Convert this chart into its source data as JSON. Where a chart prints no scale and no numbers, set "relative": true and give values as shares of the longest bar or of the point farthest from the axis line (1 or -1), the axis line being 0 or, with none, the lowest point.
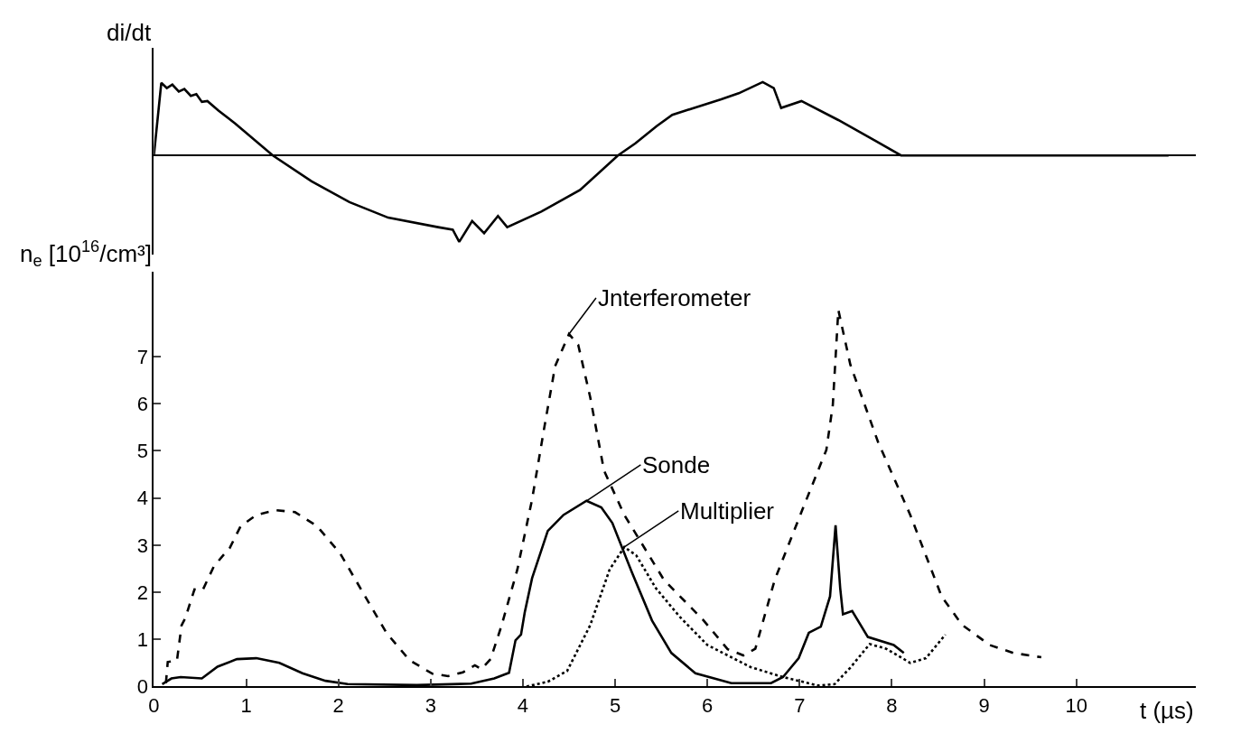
{
  "chart_data": [
    {
      "type": "line",
      "relative": true,
      "ylabel": "di/dt",
      "xlim": [
        0,
        11.3
      ],
      "tick_labels": false,
      "legend": false,
      "marker": "none",
      "series": [
        {
          "color": "#000000",
          "line_style": "solid",
          "x": [
            0,
            0.08,
            0.14,
            0.2,
            0.27,
            0.33,
            0.4,
            0.46,
            0.52,
            0.58,
            0.7,
            0.88,
            1.29,
            1.71,
            2.12,
            2.54,
            3.08,
            3.24,
            3.31,
            3.45,
            3.58,
            3.73,
            3.83,
            4.2,
            4.62,
            5.03,
            5.22,
            5.45,
            5.62,
            6.15,
            6.34,
            6.6,
            6.72,
            6.8,
            7.02,
            7.42,
            7.82,
            8.1,
            11.0
          ],
          "values": [
            0,
            0.84,
            0.78,
            0.82,
            0.74,
            0.77,
            0.69,
            0.71,
            0.62,
            0.63,
            0.52,
            0.37,
            0,
            -0.3,
            -0.54,
            -0.72,
            -0.83,
            -0.86,
            -1,
            -0.76,
            -0.9,
            -0.7,
            -0.83,
            -0.65,
            -0.4,
            0,
            0.14,
            0.34,
            0.47,
            0.65,
            0.72,
            0.85,
            0.78,
            0.55,
            0.63,
            0.41,
            0.17,
            0,
            0
          ]
        }
      ]
    },
    {
      "type": "line",
      "ylabel": "n$_{e}$ [10$^{16}$/cm³]",
      "xlabel": "t (µs)",
      "xlim": [
        0,
        11.3
      ],
      "ylim": [
        0,
        8.8
      ],
      "xticks": [
        0,
        1,
        2,
        3,
        4,
        5,
        6,
        7,
        8,
        9,
        10
      ],
      "yticks": [
        0,
        1,
        2,
        3,
        4,
        5,
        6,
        7
      ],
      "legend": false,
      "marker": "none",
      "series": [
        {
          "name": "Jnterferometer",
          "color": "#000000",
          "line_style": "dashed",
          "x": [
            0.13,
            0.15,
            0.25,
            0.3,
            0.34,
            0.44,
            0.53,
            0.65,
            0.78,
            0.82,
            0.94,
            1.11,
            1.32,
            1.53,
            1.77,
            2.02,
            2.27,
            2.52,
            2.77,
            3.02,
            3.19,
            3.35,
            3.48,
            3.55,
            3.65,
            3.77,
            3.94,
            4.1,
            4.23,
            4.35,
            4.5,
            4.6,
            4.73,
            4.88,
            5.1,
            5.53,
            5.96,
            6.22,
            6.39,
            6.52,
            6.73,
            7.04,
            7.29,
            7.36,
            7.42,
            7.55,
            7.85,
            8.2,
            8.54,
            8.76,
            9.06,
            9.32,
            9.62
          ],
          "values": [
            0.07,
            0.52,
            0.55,
            1.3,
            1.45,
            2.06,
            2.05,
            2.55,
            2.85,
            2.93,
            3.4,
            3.64,
            3.74,
            3.7,
            3.4,
            2.82,
            1.98,
            1.14,
            0.56,
            0.27,
            0.22,
            0.3,
            0.45,
            0.37,
            0.58,
            1.3,
            2.48,
            3.97,
            5.47,
            6.8,
            7.48,
            7.25,
            6.14,
            4.58,
            3.64,
            2.26,
            1.4,
            0.79,
            0.66,
            0.8,
            2.26,
            3.8,
            5.02,
            5.97,
            7.99,
            6.83,
            5.19,
            3.64,
            1.91,
            1.31,
            0.88,
            0.71,
            0.62
          ]
        },
        {
          "name": "Sonde",
          "color": "#000000",
          "line_style": "solid",
          "x": [
            0.09,
            0.19,
            0.29,
            0.52,
            0.69,
            0.9,
            1.11,
            1.36,
            1.61,
            1.86,
            2.1,
            2.85,
            3.44,
            3.69,
            3.85,
            3.92,
            3.98,
            4.02,
            4.1,
            4.27,
            4.44,
            4.69,
            4.85,
            4.97,
            5.18,
            5.4,
            5.61,
            5.87,
            6.26,
            6.69,
            6.82,
            6.99,
            7.1,
            7.23,
            7.33,
            7.39,
            7.44,
            7.47,
            7.57,
            7.74,
            8.02,
            8.13
          ],
          "values": [
            0.05,
            0.17,
            0.2,
            0.17,
            0.42,
            0.58,
            0.6,
            0.5,
            0.28,
            0.12,
            0.05,
            0.03,
            0.06,
            0.17,
            0.29,
            0.98,
            1.1,
            1.57,
            2.3,
            3.3,
            3.64,
            3.94,
            3.8,
            3.47,
            2.43,
            1.4,
            0.71,
            0.28,
            0.07,
            0.07,
            0.2,
            0.6,
            1.14,
            1.27,
            1.91,
            3.42,
            2.09,
            1.53,
            1.6,
            1.05,
            0.88,
            0.71
          ]
        },
        {
          "name": "Multiplier",
          "color": "#000000",
          "line_style": "dotted",
          "x": [
            4.04,
            4.27,
            4.48,
            4.73,
            4.94,
            5.1,
            5.23,
            5.44,
            5.7,
            6.0,
            6.47,
            6.82,
            7.2,
            7.38,
            7.55,
            7.76,
            7.94,
            8.2,
            8.37,
            8.58
          ],
          "values": [
            0,
            0.1,
            0.33,
            1.3,
            2.48,
            2.96,
            2.78,
            2.09,
            1.48,
            0.88,
            0.41,
            0.2,
            0.02,
            0.05,
            0.4,
            0.9,
            0.8,
            0.5,
            0.6,
            1.1
          ]
        }
      ]
    }
  ]
}
